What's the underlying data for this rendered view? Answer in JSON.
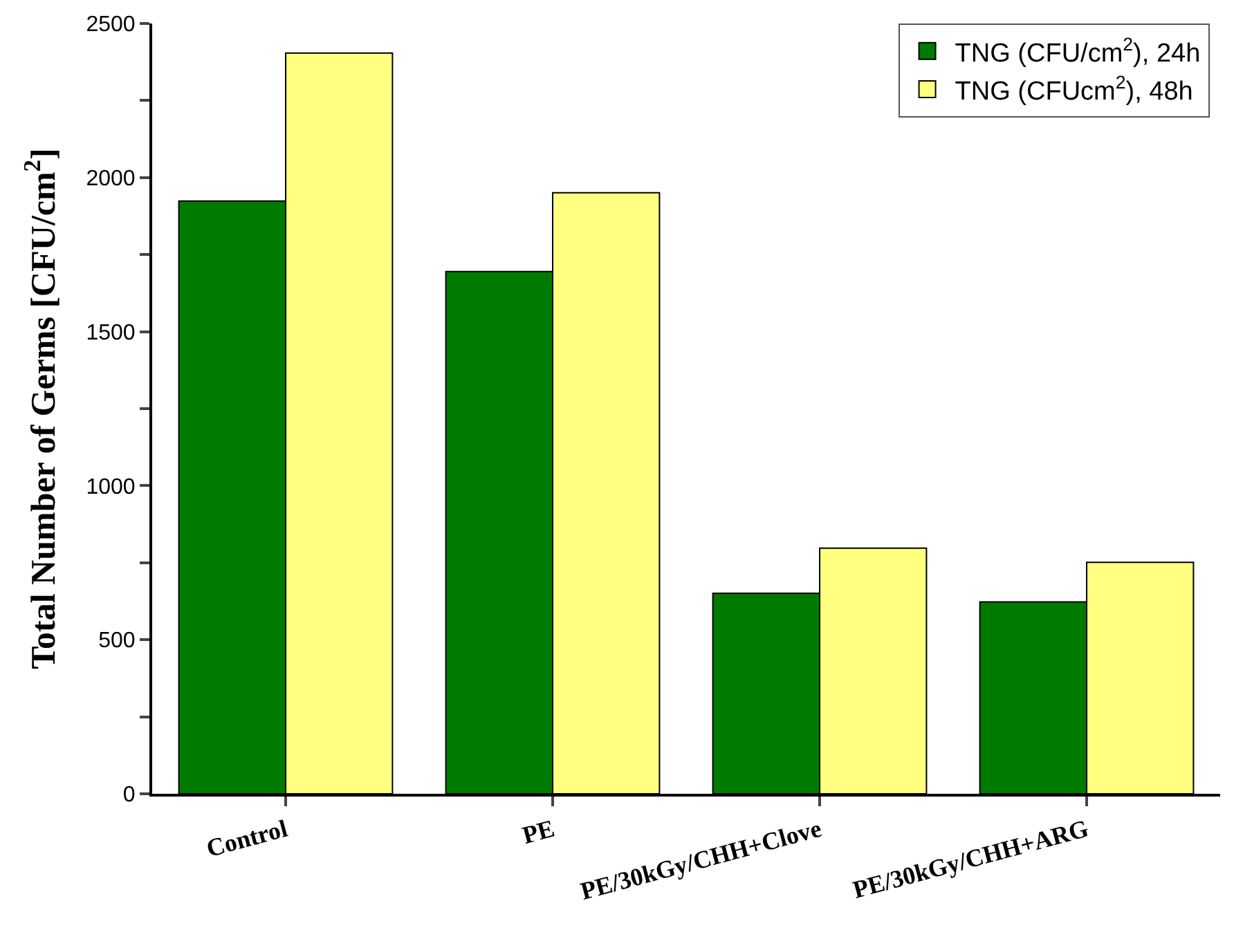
{
  "chart_data": {
    "type": "bar",
    "categories": [
      "Control",
      "PE",
      "PE/30kGy/CHH+Clove",
      "PE/30kGy/CHH+ARG"
    ],
    "series": [
      {
        "name": "TNG (CFU/cm$^{2}$), 24h",
        "color": "#007b00",
        "values": [
          1924,
          1695,
          651,
          623
        ]
      },
      {
        "name": "TNG (CFUcm$^{2}$), 48h",
        "color": "#ffff80",
        "values": [
          2404,
          1951,
          797,
          751
        ]
      }
    ],
    "ylabel": "Total Number of Germs [CFU/cm$^{2}$]",
    "ylim": [
      0,
      2500
    ],
    "yticks": [
      0,
      {
        "value": 250,
        "label": null
      },
      500,
      {
        "value": 750,
        "label": null
      },
      1000,
      {
        "value": 1250,
        "label": null
      },
      1500,
      {
        "value": 1750,
        "label": null
      },
      2000,
      {
        "value": 2250,
        "label": null
      },
      2500
    ],
    "legend": "top right"
  }
}
